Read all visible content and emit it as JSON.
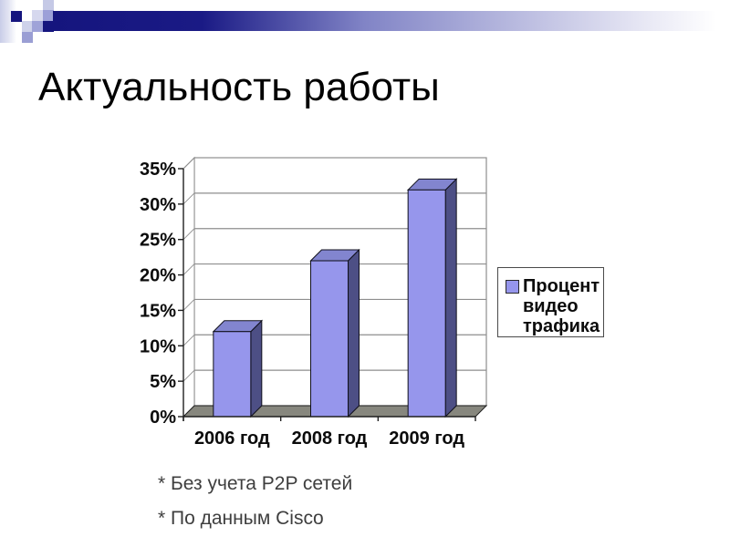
{
  "slide": {
    "title": "Актуальность работы",
    "footnotes": [
      "* Без учета P2P сетей",
      "* По данным Cisco"
    ]
  },
  "chart_data": {
    "type": "bar",
    "style": "3d-column",
    "title": "",
    "categories": [
      "2006 год",
      "2008 год",
      "2009 год"
    ],
    "series": [
      {
        "name": "Процент видео трафика",
        "values": [
          12,
          22,
          32
        ],
        "unit": "%"
      }
    ],
    "xlabel": "",
    "ylabel": "",
    "ylim": [
      0,
      35
    ],
    "ytick_step": 5,
    "ytick_labels": [
      "0%",
      "5%",
      "10%",
      "15%",
      "20%",
      "25%",
      "30%",
      "35%"
    ],
    "grid": true,
    "legend": {
      "position": "right",
      "entries": [
        "Процент видео трафика"
      ],
      "lines": [
        "Процент",
        "видео",
        "трафика"
      ]
    },
    "colors": {
      "bar_front": "#9696ec",
      "bar_top": "#8285cf",
      "bar_side": "#4d4f85",
      "floor": "#87877e",
      "wall_line": "#8e8e8e",
      "axis": "#1f1f1f"
    }
  },
  "decoration": {
    "banner_navy": "#15157e",
    "banner_mid": "#8184c6",
    "banner_end": "#ffffff"
  }
}
